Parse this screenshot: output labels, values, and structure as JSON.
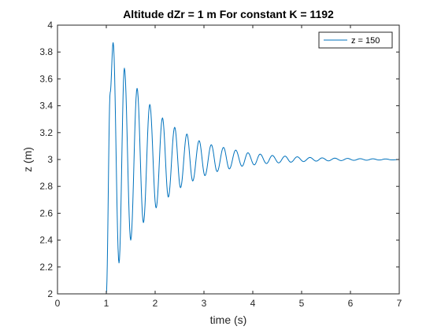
{
  "chart_data": {
    "type": "line",
    "title": "Altitude dZr = 1 m    For constant K = 1192",
    "xlabel": "time (s)",
    "ylabel": "z (m)",
    "xlim": [
      0,
      7
    ],
    "ylim": [
      2,
      4
    ],
    "xticks": [
      0,
      1,
      2,
      3,
      4,
      5,
      6,
      7
    ],
    "yticks": [
      2,
      2.2,
      2.4,
      2.6,
      2.8,
      3,
      3.2,
      3.4,
      3.6,
      3.8,
      4
    ],
    "xtick_labels": [
      "0",
      "1",
      "2",
      "3",
      "4",
      "5",
      "6",
      "7"
    ],
    "ytick_labels": [
      "2",
      "2.2",
      "2.4",
      "2.6",
      "2.8",
      "3",
      "3.2",
      "3.4",
      "3.6",
      "3.8",
      "4"
    ],
    "grid": false,
    "legend_position": "top-right",
    "series": [
      {
        "name": "z = 150",
        "color": "#0072BD",
        "x": [
          0,
          1.0,
          1.08,
          1.14,
          1.26,
          1.37,
          1.5,
          1.63,
          1.76,
          1.89,
          2.02,
          2.15,
          2.27,
          2.4,
          2.52,
          2.65,
          2.77,
          2.9,
          3.02,
          3.15,
          3.27,
          3.4,
          3.52,
          3.65,
          3.78,
          3.9,
          4.03,
          4.15,
          4.28,
          4.4,
          4.53,
          4.66,
          4.78,
          4.91,
          5.04,
          5.17,
          5.3,
          5.42,
          5.55,
          5.68,
          5.81,
          5.94,
          6.07,
          6.2,
          6.33,
          6.46,
          6.59,
          6.72,
          6.85,
          7.0
        ],
        "y": [
          2.0,
          2.0,
          3.5,
          3.87,
          2.23,
          3.68,
          2.4,
          3.53,
          2.53,
          3.41,
          2.64,
          3.31,
          2.72,
          3.24,
          2.79,
          3.19,
          2.84,
          3.14,
          2.88,
          3.11,
          2.91,
          3.09,
          2.93,
          3.07,
          2.95,
          3.05,
          2.96,
          3.04,
          2.97,
          3.03,
          2.975,
          3.025,
          2.98,
          3.02,
          2.985,
          3.015,
          2.988,
          3.012,
          2.99,
          3.01,
          2.992,
          3.008,
          2.994,
          3.006,
          2.995,
          3.005,
          2.996,
          3.004,
          2.997,
          3.0
        ]
      }
    ]
  }
}
